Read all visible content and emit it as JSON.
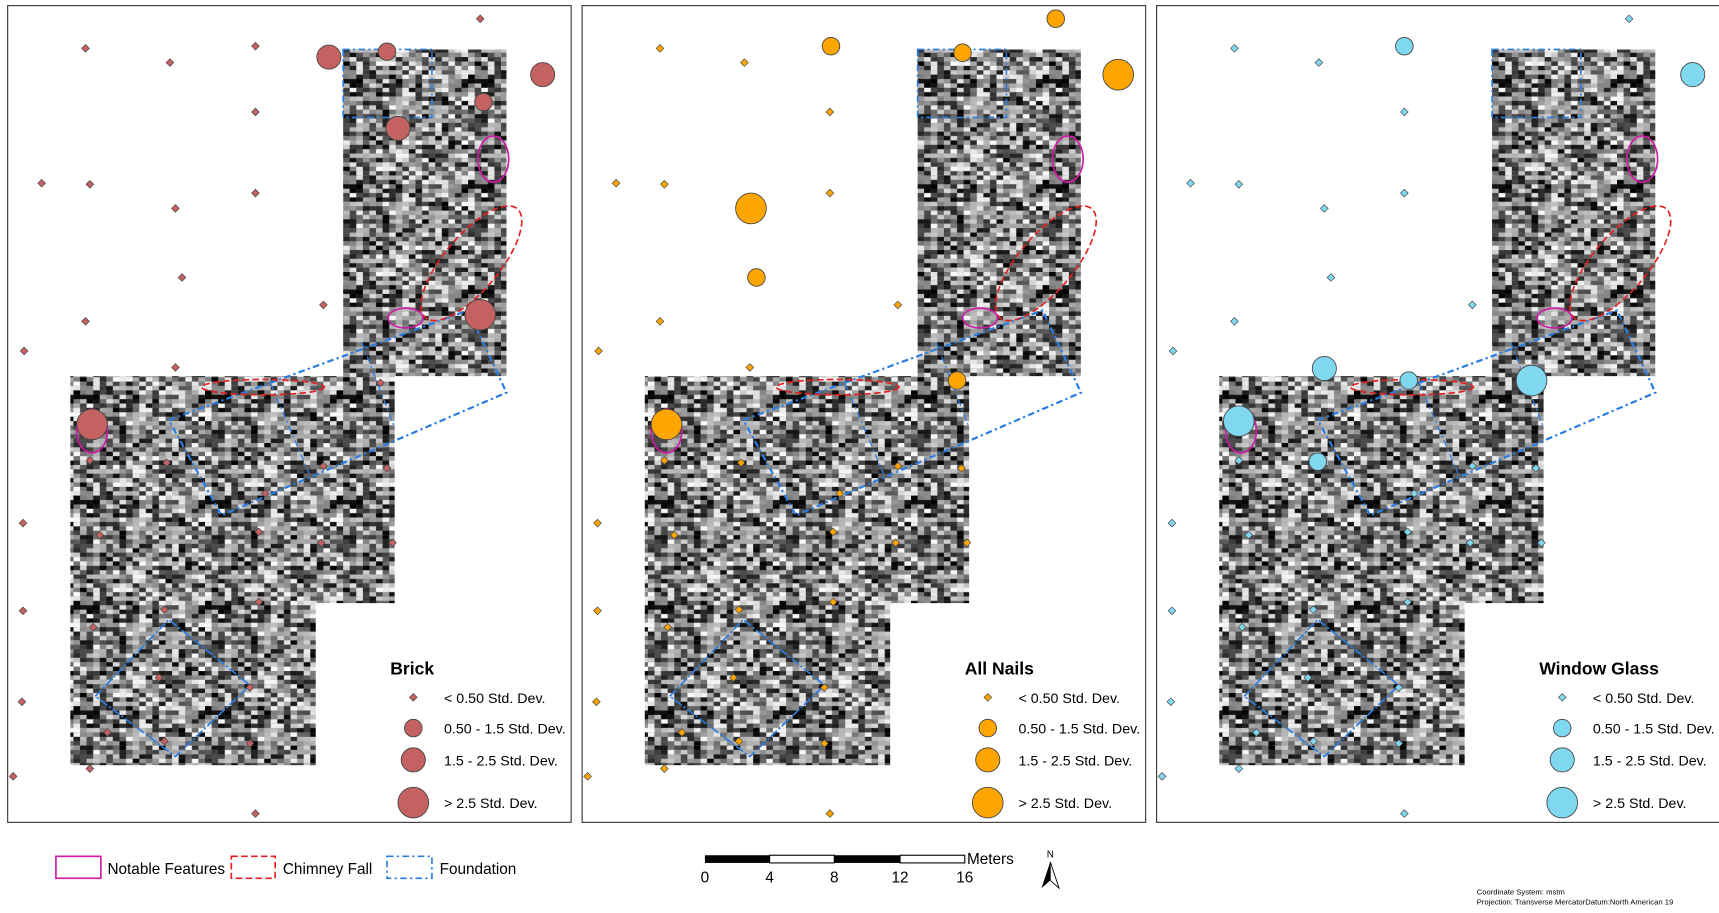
{
  "panels": [
    {
      "title": "Brick",
      "color": "#c46161",
      "legend": [
        "< 0.50 Std. Dev.",
        "0.50 - 1.5 Std. Dev.",
        "1.5 - 2.5 Std. Dev.",
        "> 2.5 Std. Dev."
      ]
    },
    {
      "title": "All Nails",
      "color": "#ffa500",
      "legend": [
        "< 0.50 Std. Dev.",
        "0.50 - 1.5 Std. Dev.",
        "1.5 - 2.5 Std. Dev.",
        "> 2.5 Std. Dev."
      ]
    },
    {
      "title": "Window Glass",
      "color": "#7fd8ef",
      "legend": [
        "< 0.50 Std. Dev.",
        "0.50 - 1.5 Std. Dev.",
        "1.5 - 2.5 Std. Dev.",
        "> 2.5 Std. Dev."
      ]
    }
  ],
  "feature_legend": [
    "Notable Features",
    "Chimney Fall",
    "Foundation"
  ],
  "scale_bar": {
    "unit": "Meters",
    "ticks": [
      "0",
      "4",
      "8",
      "12",
      "16"
    ]
  },
  "north": "N",
  "footer": [
    "Coordinate System: mstm",
    "Projection: Transverse MercatorDatum:North American 19"
  ]
}
